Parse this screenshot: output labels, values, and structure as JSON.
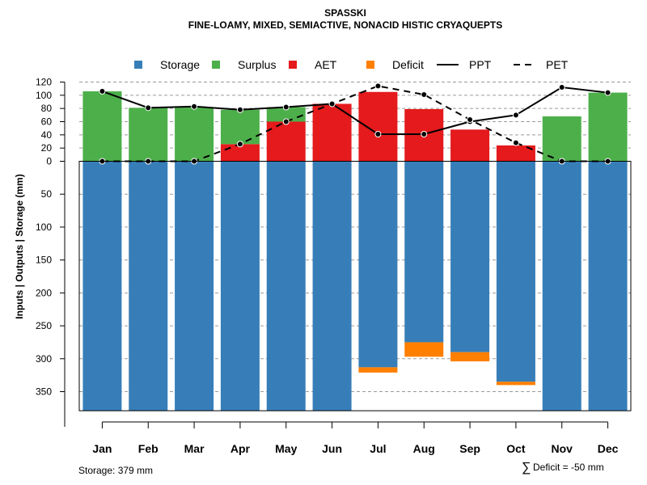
{
  "chart_data": {
    "type": "bar",
    "title": "SPASSKI",
    "subtitle": "FINE-LOAMY, MIXED, SEMIACTIVE, NONACID HISTIC CRYAQUEPTS",
    "ylabel": "Inputs | Outputs | Storage    (mm)",
    "categories": [
      "Jan",
      "Feb",
      "Mar",
      "Apr",
      "May",
      "Jun",
      "Jul",
      "Aug",
      "Sep",
      "Oct",
      "Nov",
      "Dec"
    ],
    "upper_axis": {
      "ylim": [
        0,
        120
      ],
      "ticks": [
        0,
        20,
        40,
        60,
        80,
        100,
        120
      ]
    },
    "lower_axis": {
      "ylim": [
        0,
        379
      ],
      "ticks": [
        50,
        100,
        150,
        200,
        250,
        300,
        350
      ]
    },
    "series": [
      {
        "name": "Storage",
        "color": "#377EB8",
        "mark": "bar-below",
        "values": [
          379,
          379,
          379,
          379,
          379,
          379,
          313,
          275,
          290,
          335,
          379,
          379
        ]
      },
      {
        "name": "Surplus",
        "color": "#4DAF4A",
        "mark": "bar-above",
        "values": [
          106,
          81,
          82,
          52,
          22,
          0,
          0,
          0,
          0,
          0,
          68,
          104
        ]
      },
      {
        "name": "AET",
        "color": "#E41A1C",
        "mark": "bar-above",
        "values": [
          0,
          0,
          0,
          26,
          60,
          87,
          105,
          79,
          48,
          24,
          0,
          0
        ]
      },
      {
        "name": "Deficit",
        "color": "#FF7F00",
        "mark": "bar-below-stacked",
        "values": [
          0,
          0,
          0,
          0,
          0,
          0,
          8,
          22,
          14,
          5,
          0,
          0
        ]
      },
      {
        "name": "PPT",
        "color": "#000000",
        "mark": "line-solid",
        "values": [
          106,
          81,
          83,
          78,
          82,
          87,
          41,
          41,
          60,
          70,
          112,
          104
        ]
      },
      {
        "name": "PET",
        "color": "#000000",
        "mark": "line-dashed",
        "values": [
          0,
          0,
          0,
          26,
          60,
          87,
          114,
          101,
          63,
          28,
          0,
          0
        ]
      }
    ],
    "grid": true,
    "legend": "top",
    "footer_left": "Storage: 379 mm",
    "footer_right_symbol": "∑",
    "footer_right": "Deficit = -50 mm"
  }
}
